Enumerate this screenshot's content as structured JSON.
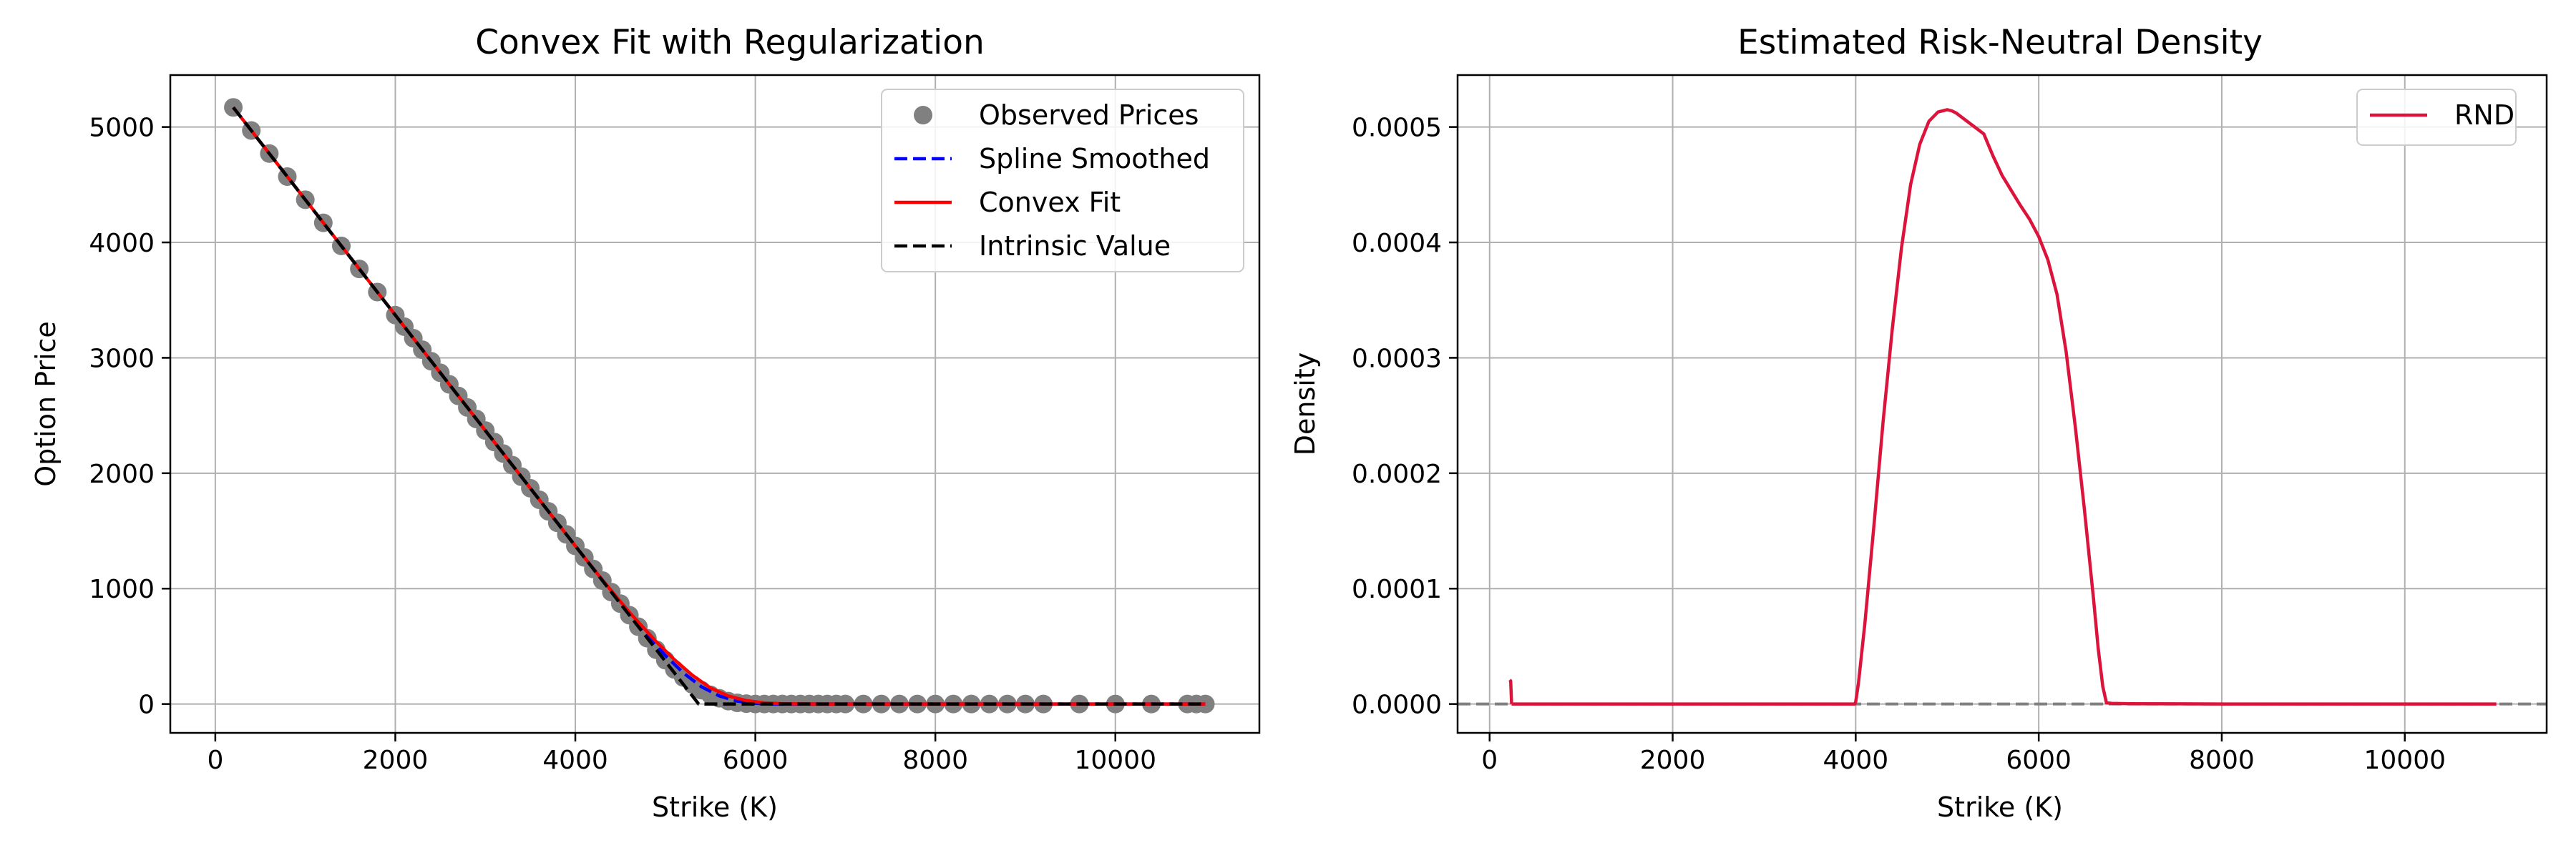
{
  "figure": {
    "background": "#ffffff"
  },
  "chart_data": [
    {
      "type": "line",
      "title": "Convex Fit with Regularization",
      "xlabel": "Strike (K)",
      "ylabel": "Option Price",
      "xlim": [
        -500,
        11600
      ],
      "ylim": [
        -250,
        5450
      ],
      "xticks": [
        0,
        2000,
        4000,
        6000,
        8000,
        10000
      ],
      "yticks": [
        0,
        1000,
        2000,
        3000,
        4000,
        5000
      ],
      "grid": true,
      "legend_position": "top-right",
      "series": [
        {
          "name": "Observed Prices",
          "style": "markers",
          "color": "#808080",
          "x": [
            200,
            400,
            600,
            800,
            1000,
            1200,
            1400,
            1600,
            1800,
            2000,
            2100,
            2200,
            2300,
            2400,
            2500,
            2600,
            2700,
            2800,
            2900,
            3000,
            3100,
            3200,
            3300,
            3400,
            3500,
            3600,
            3700,
            3800,
            3900,
            4000,
            4100,
            4200,
            4300,
            4400,
            4500,
            4600,
            4700,
            4800,
            4900,
            5000,
            5100,
            5200,
            5300,
            5400,
            5500,
            5600,
            5700,
            5800,
            5900,
            6000,
            6100,
            6200,
            6300,
            6400,
            6500,
            6600,
            6700,
            6800,
            6900,
            7000,
            7200,
            7400,
            7600,
            7800,
            8000,
            8200,
            8400,
            8600,
            8800,
            9000,
            9200,
            9600,
            10000,
            10400,
            10800,
            10900,
            11000
          ],
          "y": [
            5170,
            4970,
            4770,
            4570,
            4370,
            4170,
            3970,
            3770,
            3570,
            3370,
            3270,
            3170,
            3070,
            2970,
            2870,
            2770,
            2670,
            2570,
            2470,
            2370,
            2270,
            2170,
            2070,
            1970,
            1870,
            1770,
            1670,
            1570,
            1470,
            1370,
            1270,
            1170,
            1070,
            970,
            870,
            770,
            670,
            570,
            470,
            380,
            300,
            230,
            170,
            120,
            80,
            50,
            25,
            10,
            3,
            0,
            0,
            0,
            0,
            0,
            0,
            0,
            0,
            0,
            0,
            0,
            0,
            0,
            0,
            0,
            0,
            0,
            0,
            0,
            0,
            0,
            0,
            0,
            0,
            0,
            0,
            0,
            0
          ]
        },
        {
          "name": "Spline Smoothed",
          "style": "dashed",
          "color": "#0000ff",
          "x": [
            200,
            1000,
            2000,
            3000,
            4000,
            4500,
            4800,
            5000,
            5200,
            5400,
            5600,
            5800,
            6000,
            6200,
            6500,
            7000,
            8000,
            9000,
            10000,
            11000
          ],
          "y": [
            5170,
            4370,
            3370,
            2370,
            1370,
            880,
            600,
            420,
            270,
            150,
            70,
            25,
            5,
            0,
            0,
            0,
            0,
            0,
            0,
            0
          ]
        },
        {
          "name": "Convex Fit",
          "style": "solid",
          "color": "#ff0000",
          "x": [
            200,
            1000,
            2000,
            3000,
            4000,
            4300,
            4600,
            4900,
            5100,
            5300,
            5500,
            5700,
            5900,
            6100,
            6300,
            6700,
            7000,
            8000,
            9000,
            10000,
            11000
          ],
          "y": [
            5170,
            4370,
            3370,
            2370,
            1370,
            1075,
            795,
            540,
            385,
            250,
            140,
            70,
            30,
            10,
            3,
            0,
            0,
            0,
            0,
            0,
            0
          ]
        },
        {
          "name": "Intrinsic Value",
          "style": "dashed",
          "color": "#000000",
          "x": [
            200,
            5370,
            11000
          ],
          "y": [
            5170,
            0,
            0
          ]
        }
      ]
    },
    {
      "type": "line",
      "title": "Estimated Risk-Neutral Density",
      "xlabel": "Strike (K)",
      "ylabel": "Density",
      "xlim": [
        -350,
        11550
      ],
      "ylim": [
        -2.5e-05,
        0.000545
      ],
      "xticks": [
        0,
        2000,
        4000,
        6000,
        8000,
        10000
      ],
      "yticks": [
        0.0,
        0.0001,
        0.0002,
        0.0003,
        0.0004,
        0.0005
      ],
      "ytick_labels": [
        "0.0000",
        "0.0001",
        "0.0002",
        "0.0003",
        "0.0004",
        "0.0005"
      ],
      "grid": true,
      "legend_position": "top-right",
      "reference_line": {
        "y": 0,
        "style": "dashed",
        "color": "#808080"
      },
      "series": [
        {
          "name": "RND",
          "style": "solid",
          "color": "#dc143c",
          "segments": [
            {
              "x": [
                220,
                230,
                240
              ],
              "y": [
                2.1e-05,
                2e-05,
                0.0
              ]
            },
            {
              "x": [
                240,
                1000,
                2000,
                3000,
                3990,
                4000,
                4030,
                4100,
                4200,
                4300,
                4400,
                4500,
                4600,
                4700,
                4800,
                4900,
                5000,
                5050,
                5100,
                5200,
                5300,
                5400,
                5500,
                5600,
                5700,
                5800,
                5900,
                6000,
                6100,
                6200,
                6300,
                6400,
                6500,
                6600,
                6650,
                6700,
                6740,
                6800,
                7000,
                8000,
                9000,
                10000,
                11000
              ],
              "y": [
                0.0,
                0.0,
                0.0,
                0.0,
                0.0,
                2e-06,
                1.8e-05,
                7e-05,
                0.000155,
                0.000245,
                0.000325,
                0.000395,
                0.00045,
                0.000485,
                0.000505,
                0.000513,
                0.000515,
                0.000514,
                0.000512,
                0.000506,
                0.0005,
                0.000494,
                0.000475,
                0.000458,
                0.000445,
                0.000432,
                0.00042,
                0.000405,
                0.000385,
                0.000355,
                0.000305,
                0.00024,
                0.000168,
                9e-05,
                4.8e-05,
                1.5e-05,
                1e-06,
                5e-07,
                3e-07,
                0.0,
                0.0,
                0.0,
                0.0
              ]
            }
          ]
        }
      ]
    }
  ]
}
